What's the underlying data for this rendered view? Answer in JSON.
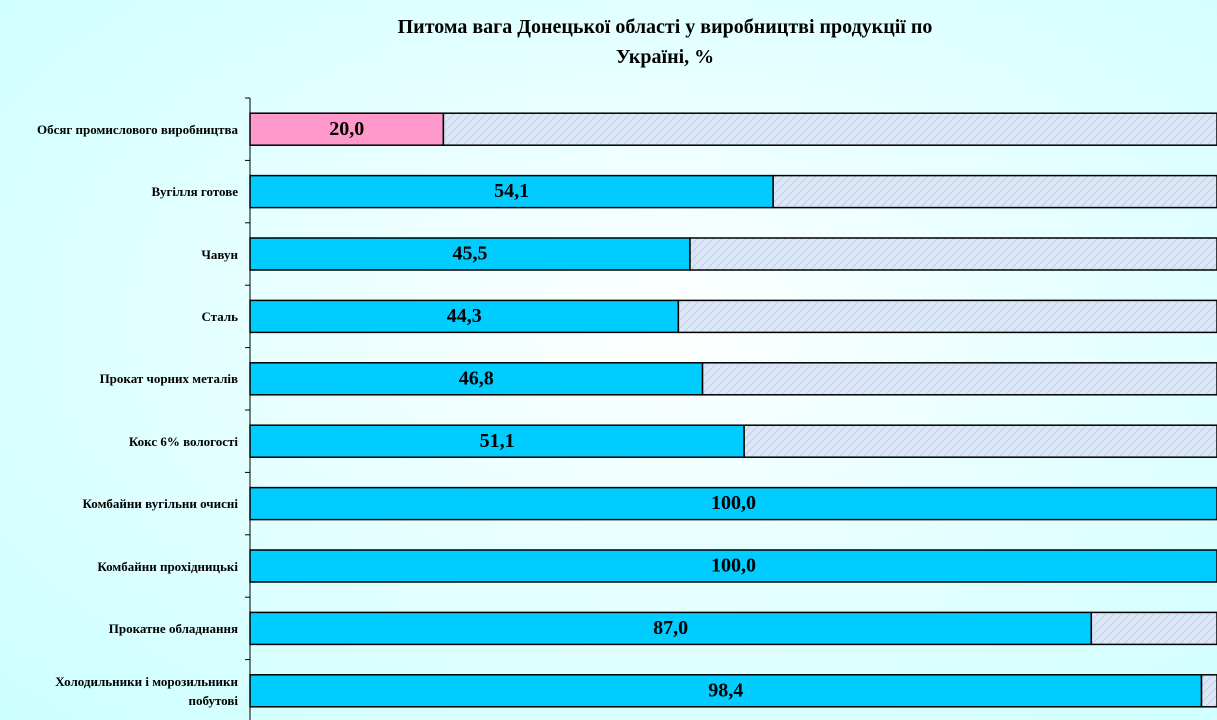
{
  "chart_data": {
    "type": "stacked-bar-horizontal",
    "title": "Питома вага Донецької області у виробництві продукції по Україні, %",
    "categories": [
      "Обсяг промислового виробництва",
      "Вугілля готове",
      "Чавун",
      "Сталь",
      "Прокат чорних металів",
      "Кокс 6% вологості",
      "Комбайни вугільни очисні",
      "Комбайни прохідницькі",
      "Прокатне обладнання",
      "Холодильники і морозильники побутові"
    ],
    "series": [
      {
        "colors": [
          "#ff99cc",
          "#00ccff",
          "#00ccff",
          "#00ccff",
          "#00ccff",
          "#00ccff",
          "#00ccff",
          "#00ccff",
          "#00ccff",
          "#00ccff"
        ],
        "values": [
          20.0,
          54.1,
          45.5,
          44.3,
          46.8,
          51.1,
          100.0,
          100.0,
          87.0,
          98.4
        ],
        "value_labels": [
          "20,0",
          "54,1",
          "45,5",
          "44,3",
          "46,8",
          "51,1",
          "100,0",
          "100,0",
          "87,0",
          "98,4"
        ]
      },
      {
        "color": "#dbe6f6",
        "values": [
          80.0,
          45.9,
          54.5,
          55.7,
          53.2,
          48.9,
          0.0,
          0.0,
          13.0,
          1.6
        ]
      }
    ],
    "xlim": [
      0,
      100
    ]
  }
}
